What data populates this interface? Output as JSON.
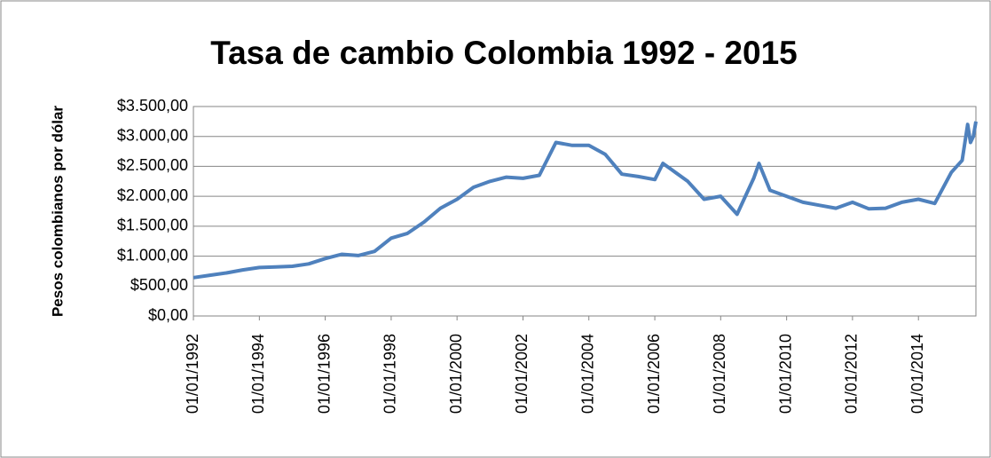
{
  "chart_data": {
    "type": "line",
    "title": "Tasa de cambio Colombia 1992 - 2015",
    "y_label": "Pesos colombianos por dólar",
    "x": [
      "01/01/1992",
      "01/07/1992",
      "01/01/1993",
      "01/07/1993",
      "01/01/1994",
      "01/07/1994",
      "01/01/1995",
      "01/07/1995",
      "01/01/1996",
      "01/07/1996",
      "01/01/1997",
      "01/07/1997",
      "01/01/1998",
      "01/07/1998",
      "01/01/1999",
      "01/07/1999",
      "01/01/2000",
      "01/07/2000",
      "01/01/2001",
      "01/07/2001",
      "01/01/2002",
      "01/07/2002",
      "01/01/2003",
      "01/07/2003",
      "01/01/2004",
      "01/07/2004",
      "01/01/2005",
      "01/07/2005",
      "01/01/2006",
      "01/04/2006",
      "01/07/2006",
      "01/01/2007",
      "01/07/2007",
      "01/01/2008",
      "01/07/2008",
      "01/01/2009",
      "01/03/2009",
      "01/07/2009",
      "01/01/2010",
      "01/07/2010",
      "01/01/2011",
      "01/07/2011",
      "01/01/2012",
      "01/07/2012",
      "01/01/2013",
      "01/07/2013",
      "01/01/2014",
      "01/07/2014",
      "01/01/2015",
      "01/05/2015",
      "01/07/2015",
      "01/08/2015",
      "01/09/2015",
      "30/09/2015"
    ],
    "series": [
      {
        "name": "Tasa de cambio",
        "color": "#4f81bd",
        "values": [
          640,
          680,
          720,
          770,
          810,
          820,
          830,
          870,
          960,
          1030,
          1010,
          1080,
          1300,
          1380,
          1570,
          1800,
          1950,
          2150,
          2250,
          2320,
          2300,
          2350,
          2900,
          2850,
          2850,
          2700,
          2370,
          2330,
          2280,
          2550,
          2450,
          2250,
          1950,
          2000,
          1700,
          2300,
          2550,
          2100,
          2000,
          1900,
          1850,
          1800,
          1900,
          1790,
          1800,
          1900,
          1950,
          1880,
          2400,
          2600,
          3200,
          2900,
          3000,
          3250
        ]
      }
    ],
    "xlim": [
      "01/01/1992",
      "30/09/2015"
    ],
    "xticks": [
      "01/01/1992",
      "01/01/1994",
      "01/01/1996",
      "01/01/1998",
      "01/01/2000",
      "01/01/2002",
      "01/01/2004",
      "01/01/2006",
      "01/01/2008",
      "01/01/2010",
      "01/01/2012",
      "01/01/2014"
    ],
    "ylim": [
      0,
      3500
    ],
    "yticks": [
      {
        "value": 0,
        "label": "$0,00"
      },
      {
        "value": 500,
        "label": "$500,00"
      },
      {
        "value": 1000,
        "label": "$1.000,00"
      },
      {
        "value": 1500,
        "label": "$1.500,00"
      },
      {
        "value": 2000,
        "label": "$2.000,00"
      },
      {
        "value": 2500,
        "label": "$2.500,00"
      },
      {
        "value": 3000,
        "label": "$3.000,00"
      },
      {
        "value": 3500,
        "label": "$3.500,00"
      }
    ],
    "grid": true
  }
}
